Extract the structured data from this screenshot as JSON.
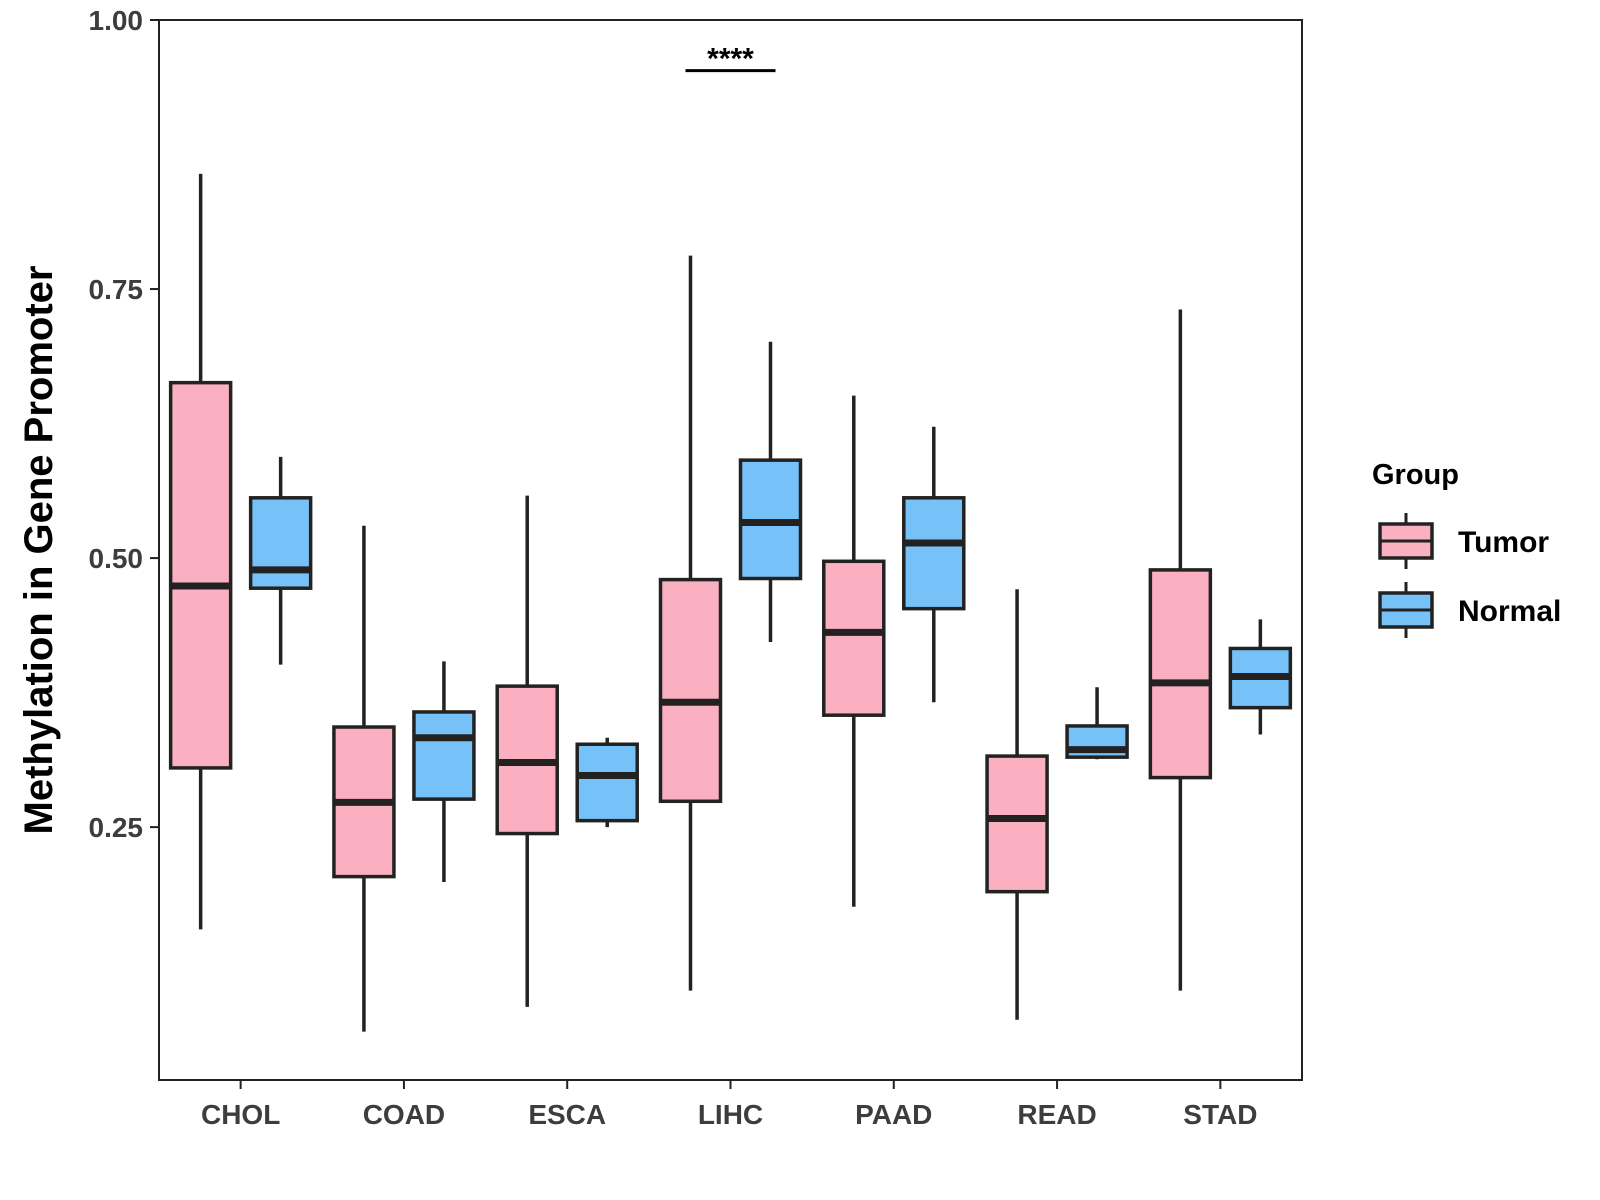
{
  "chart_data": {
    "type": "boxplot",
    "title": "",
    "xlabel": "",
    "ylabel": "Methylation in Gene Promoter",
    "ylim": [
      0.015,
      1.0
    ],
    "yticks": [
      0.25,
      0.5,
      0.75,
      1.0
    ],
    "ytick_labels": [
      "0.25",
      "0.50",
      "0.75",
      "1.00"
    ],
    "grid": false,
    "legend_position": "right",
    "legend": {
      "title": "Group",
      "entries": [
        {
          "name": "Tumor",
          "color": "#FBB0C2"
        },
        {
          "name": "Normal",
          "color": "#76C1F7"
        }
      ]
    },
    "categories": [
      "CHOL",
      "COAD",
      "ESCA",
      "LIHC",
      "PAAD",
      "READ",
      "STAD"
    ],
    "series": [
      {
        "name": "Tumor",
        "color": "#FBB0C2",
        "boxes": [
          {
            "min": 0.155,
            "q1": 0.305,
            "median": 0.474,
            "q3": 0.663,
            "max": 0.857
          },
          {
            "min": 0.06,
            "q1": 0.204,
            "median": 0.273,
            "q3": 0.343,
            "max": 0.53
          },
          {
            "min": 0.083,
            "q1": 0.244,
            "median": 0.31,
            "q3": 0.381,
            "max": 0.558
          },
          {
            "min": 0.098,
            "q1": 0.274,
            "median": 0.366,
            "q3": 0.48,
            "max": 0.781
          },
          {
            "min": 0.176,
            "q1": 0.354,
            "median": 0.431,
            "q3": 0.497,
            "max": 0.651
          },
          {
            "min": 0.071,
            "q1": 0.19,
            "median": 0.258,
            "q3": 0.316,
            "max": 0.471
          },
          {
            "min": 0.098,
            "q1": 0.296,
            "median": 0.384,
            "q3": 0.489,
            "max": 0.731
          }
        ]
      },
      {
        "name": "Normal",
        "color": "#76C1F7",
        "boxes": [
          {
            "min": 0.401,
            "q1": 0.472,
            "median": 0.489,
            "q3": 0.556,
            "max": 0.594
          },
          {
            "min": 0.199,
            "q1": 0.276,
            "median": 0.333,
            "q3": 0.357,
            "max": 0.404
          },
          {
            "min": 0.25,
            "q1": 0.256,
            "median": 0.298,
            "q3": 0.327,
            "max": 0.333
          },
          {
            "min": 0.422,
            "q1": 0.481,
            "median": 0.533,
            "q3": 0.591,
            "max": 0.701
          },
          {
            "min": 0.366,
            "q1": 0.453,
            "median": 0.514,
            "q3": 0.556,
            "max": 0.622
          },
          {
            "min": 0.313,
            "q1": 0.315,
            "median": 0.322,
            "q3": 0.344,
            "max": 0.38
          },
          {
            "min": 0.336,
            "q1": 0.361,
            "median": 0.39,
            "q3": 0.416,
            "max": 0.443
          }
        ]
      }
    ],
    "annotations": [
      {
        "category": "LIHC",
        "text": "****",
        "y": 0.953
      }
    ]
  }
}
